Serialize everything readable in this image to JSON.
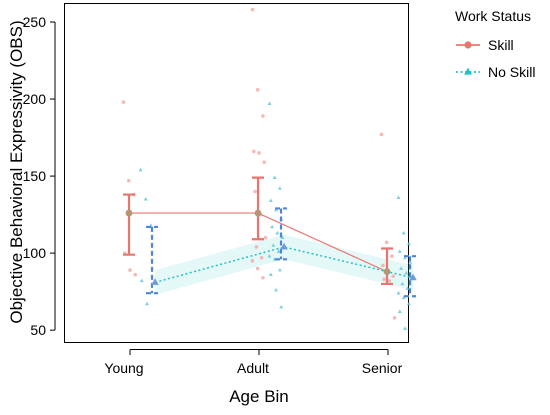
{
  "colors": {
    "skill": "#e8766f",
    "no_skill": "#23c2c7",
    "skill_mean": "#b89572",
    "no_skill_mean": "#6f9bd6",
    "no_skill_ci": "#4f86d2",
    "skill_points": "#f6a0a0",
    "no_skill_points": "#5fc3d8"
  },
  "chart_data": {
    "type": "line",
    "xlabel": "Age Bin",
    "ylabel": "Objective Behavioral Expressivity (OBS)",
    "categories": [
      "Young",
      "Adult",
      "Senior"
    ],
    "ylim": [
      42,
      262
    ],
    "yticks": [
      50,
      100,
      150,
      200,
      250
    ],
    "grid": false,
    "legend": {
      "title": "Work Status",
      "position": "top-right"
    },
    "series": [
      {
        "name": "Skill",
        "marker": "circle",
        "line_style": "solid",
        "means": [
          126,
          126,
          88
        ],
        "ci_low": [
          99,
          109,
          80
        ],
        "ci_high": [
          138,
          149,
          103
        ],
        "raw_points": [
          [
            198,
            147,
            138,
            100,
            89,
            86
          ],
          [
            258,
            206,
            189,
            166,
            165,
            159,
            140,
            125,
            110,
            104,
            97,
            95,
            90,
            84
          ],
          [
            177,
            107,
            98,
            92,
            88,
            85,
            83,
            82,
            58
          ]
        ]
      },
      {
        "name": "No Skill",
        "marker": "triangle",
        "line_style": "dotted",
        "means": [
          81,
          104,
          84
        ],
        "ci_low": [
          74,
          96,
          72
        ],
        "ci_high": [
          117,
          129,
          98
        ],
        "raw_points": [
          [
            154,
            135,
            118,
            82,
            67
          ],
          [
            197,
            149,
            142,
            134,
            128,
            122,
            117,
            113,
            110,
            105,
            101,
            98,
            96,
            89,
            86,
            76,
            65
          ],
          [
            136,
            113,
            106,
            101,
            97,
            94,
            90,
            87,
            84,
            80,
            77,
            74,
            71,
            67,
            62,
            51
          ]
        ]
      }
    ]
  }
}
